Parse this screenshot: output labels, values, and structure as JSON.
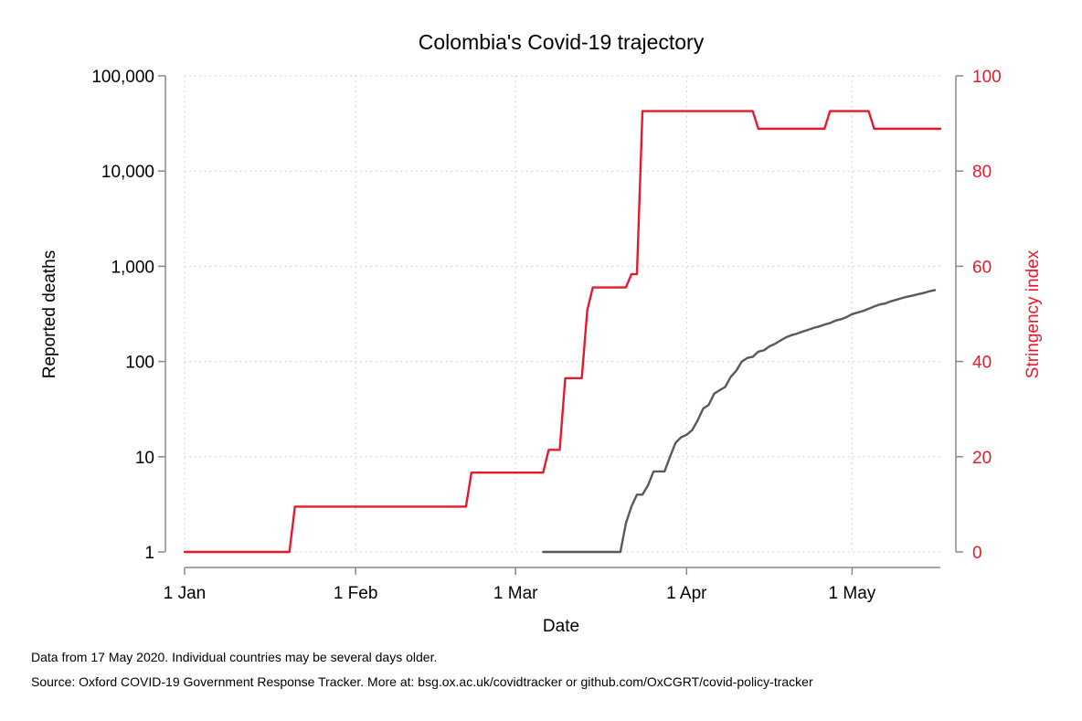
{
  "chart_data": {
    "type": "line",
    "title": "Colombia's Covid-19 trajectory",
    "xlabel": "Date",
    "ylabel": "Reported deaths",
    "y2label": "Stringency index",
    "xlim": [
      "2020-01-01",
      "2020-05-17"
    ],
    "x_ticks": [
      {
        "date": "2020-01-01",
        "label": "1 Jan"
      },
      {
        "date": "2020-02-01",
        "label": "1 Feb"
      },
      {
        "date": "2020-03-01",
        "label": "1 Mar"
      },
      {
        "date": "2020-04-01",
        "label": "1 Apr"
      },
      {
        "date": "2020-05-01",
        "label": "1 May"
      }
    ],
    "y_scale": "log",
    "ylim": [
      1,
      100000
    ],
    "y_ticks": [
      {
        "value": 1,
        "label": "1"
      },
      {
        "value": 10,
        "label": "10"
      },
      {
        "value": 100,
        "label": "100"
      },
      {
        "value": 1000,
        "label": "1,000"
      },
      {
        "value": 10000,
        "label": "10,000"
      },
      {
        "value": 100000,
        "label": "100,000"
      }
    ],
    "y2lim": [
      0,
      100
    ],
    "y2_ticks": [
      {
        "value": 0,
        "label": "0"
      },
      {
        "value": 20,
        "label": "20"
      },
      {
        "value": 40,
        "label": "40"
      },
      {
        "value": 60,
        "label": "60"
      },
      {
        "value": 80,
        "label": "80"
      },
      {
        "value": 100,
        "label": "100"
      }
    ],
    "grid": true,
    "series": [
      {
        "axis": "left",
        "color": "#595959",
        "x": [
          "2020-03-06",
          "2020-03-07",
          "2020-03-08",
          "2020-03-09",
          "2020-03-10",
          "2020-03-11",
          "2020-03-12",
          "2020-03-13",
          "2020-03-14",
          "2020-03-15",
          "2020-03-16",
          "2020-03-17",
          "2020-03-18",
          "2020-03-19",
          "2020-03-20",
          "2020-03-21",
          "2020-03-22",
          "2020-03-23",
          "2020-03-24",
          "2020-03-25",
          "2020-03-26",
          "2020-03-27",
          "2020-03-28",
          "2020-03-29",
          "2020-03-30",
          "2020-03-31",
          "2020-04-01",
          "2020-04-02",
          "2020-04-03",
          "2020-04-04",
          "2020-04-05",
          "2020-04-06",
          "2020-04-07",
          "2020-04-08",
          "2020-04-09",
          "2020-04-10",
          "2020-04-11",
          "2020-04-12",
          "2020-04-13",
          "2020-04-14",
          "2020-04-15",
          "2020-04-16",
          "2020-04-17",
          "2020-04-18",
          "2020-04-19",
          "2020-04-20",
          "2020-04-21",
          "2020-04-22",
          "2020-04-23",
          "2020-04-24",
          "2020-04-25",
          "2020-04-26",
          "2020-04-27",
          "2020-04-28",
          "2020-04-29",
          "2020-04-30",
          "2020-05-01",
          "2020-05-02",
          "2020-05-03",
          "2020-05-04",
          "2020-05-05",
          "2020-05-06",
          "2020-05-07",
          "2020-05-08",
          "2020-05-09",
          "2020-05-10",
          "2020-05-11",
          "2020-05-12",
          "2020-05-13",
          "2020-05-14",
          "2020-05-15",
          "2020-05-16"
        ],
        "values": [
          1,
          1,
          1,
          1,
          1,
          1,
          1,
          1,
          1,
          1,
          1,
          1,
          1,
          1,
          1,
          2,
          3,
          4,
          4,
          5,
          7,
          7,
          7,
          10,
          14,
          16,
          17,
          19,
          24,
          32,
          35,
          46,
          50,
          54,
          69,
          80,
          100,
          109,
          112,
          127,
          131,
          144,
          153,
          166,
          179,
          189,
          196,
          206,
          215,
          225,
          233,
          244,
          253,
          269,
          278,
          293,
          314,
          327,
          340,
          358,
          378,
          397,
          407,
          428,
          445,
          463,
          479,
          493,
          509,
          525,
          546,
          562
        ]
      },
      {
        "axis": "right",
        "color": "#e8192c",
        "x": [
          "2020-01-01",
          "2020-01-20",
          "2020-01-21",
          "2020-02-21",
          "2020-02-22",
          "2020-03-06",
          "2020-03-07",
          "2020-03-09",
          "2020-03-10",
          "2020-03-13",
          "2020-03-14",
          "2020-03-15",
          "2020-03-16",
          "2020-03-21",
          "2020-03-22",
          "2020-03-23",
          "2020-03-24",
          "2020-04-13",
          "2020-04-14",
          "2020-04-26",
          "2020-04-27",
          "2020-05-04",
          "2020-05-05",
          "2020-05-17"
        ],
        "values": [
          0,
          0,
          9.52,
          9.52,
          16.67,
          16.67,
          21.43,
          21.43,
          36.51,
          36.51,
          50.79,
          55.56,
          55.56,
          55.56,
          58.33,
          58.33,
          92.59,
          92.59,
          88.89,
          88.89,
          92.59,
          92.59,
          88.89,
          88.89
        ]
      }
    ]
  },
  "notes": {
    "line1": "Data from 17 May 2020. Individual countries may be several days older.",
    "line2": "Source: Oxford COVID-19 Government Response Tracker. More at: bsg.ox.ac.uk/covidtracker or github.com/OxCGRT/covid-policy-tracker"
  }
}
